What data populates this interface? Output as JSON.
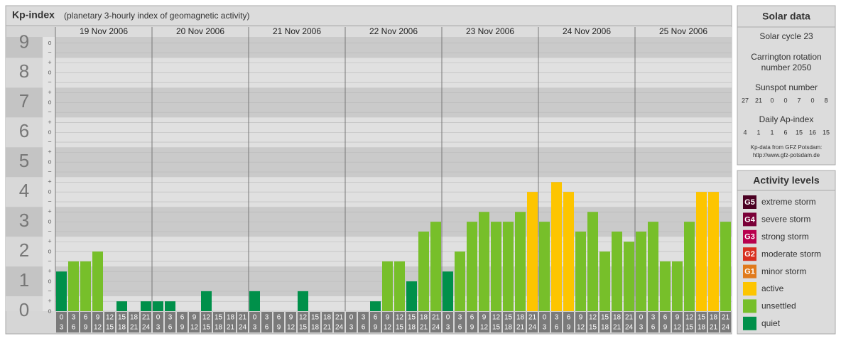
{
  "header": {
    "title": "Kp-index",
    "subtitle": "(planetary 3-hourly index of geomagnetic activity)"
  },
  "chart_data": {
    "type": "bar",
    "days": [
      "19 Nov 2006",
      "20 Nov 2006",
      "21 Nov 2006",
      "22 Nov 2006",
      "23 Nov 2006",
      "24 Nov 2006",
      "25 Nov 2006"
    ],
    "time_slots": [
      [
        "0",
        "3"
      ],
      [
        "3",
        "6"
      ],
      [
        "6",
        "9"
      ],
      [
        "9",
        "12"
      ],
      [
        "12",
        "15"
      ],
      [
        "15",
        "18"
      ],
      [
        "18",
        "21"
      ],
      [
        "21",
        "24"
      ]
    ],
    "values": [
      1.33,
      1.67,
      1.67,
      2,
      0,
      0.33,
      0,
      0.33,
      0.33,
      0.33,
      0,
      0,
      0.67,
      0,
      0,
      0,
      0.67,
      0,
      0,
      0,
      0.67,
      0,
      0,
      0,
      0,
      0,
      0.33,
      1.67,
      1.67,
      1,
      2.67,
      3,
      1.33,
      2,
      3,
      3.33,
      3,
      3,
      3.33,
      4,
      3,
      4.33,
      4,
      2.67,
      3.33,
      2,
      2.67,
      2.33,
      2.67,
      3,
      1.67,
      1.67,
      3,
      4,
      4,
      3
    ],
    "colors": [
      "#00904a",
      "#77bf2a",
      "#77bf2a",
      "#77bf2a",
      "#00904a",
      "#00904a",
      "#00904a",
      "#00904a",
      "#00904a",
      "#00904a",
      "#00904a",
      "#00904a",
      "#00904a",
      "#00904a",
      "#00904a",
      "#00904a",
      "#00904a",
      "#00904a",
      "#00904a",
      "#00904a",
      "#00904a",
      "#00904a",
      "#00904a",
      "#00904a",
      "#00904a",
      "#00904a",
      "#00904a",
      "#77bf2a",
      "#77bf2a",
      "#00904a",
      "#77bf2a",
      "#77bf2a",
      "#00904a",
      "#77bf2a",
      "#77bf2a",
      "#77bf2a",
      "#77bf2a",
      "#77bf2a",
      "#77bf2a",
      "#fdc500",
      "#77bf2a",
      "#fdc500",
      "#fdc500",
      "#77bf2a",
      "#77bf2a",
      "#77bf2a",
      "#77bf2a",
      "#77bf2a",
      "#77bf2a",
      "#77bf2a",
      "#77bf2a",
      "#77bf2a",
      "#77bf2a",
      "#fdc500",
      "#fdc500",
      "#77bf2a"
    ],
    "ylim": [
      0,
      9.2
    ],
    "yticks": [
      0,
      1,
      2,
      3,
      4,
      5,
      6,
      7,
      8,
      9
    ],
    "minor_ticks": [
      {
        "value": 0,
        "label": "o"
      },
      {
        "value": 0.33,
        "label": "+"
      },
      {
        "value": 0.67,
        "label": "−"
      },
      {
        "value": 1,
        "label": "o"
      },
      {
        "value": 1.33,
        "label": "+"
      },
      {
        "value": 1.67,
        "label": "−"
      },
      {
        "value": 2,
        "label": "o"
      },
      {
        "value": 2.33,
        "label": "+"
      },
      {
        "value": 2.67,
        "label": "−"
      },
      {
        "value": 3,
        "label": "o"
      },
      {
        "value": 3.33,
        "label": "+"
      },
      {
        "value": 3.67,
        "label": "−"
      },
      {
        "value": 4,
        "label": "o"
      },
      {
        "value": 4.33,
        "label": "+"
      },
      {
        "value": 4.67,
        "label": "−"
      },
      {
        "value": 5,
        "label": "o"
      },
      {
        "value": 5.33,
        "label": "+"
      },
      {
        "value": 5.67,
        "label": "−"
      },
      {
        "value": 6,
        "label": "o"
      },
      {
        "value": 6.33,
        "label": "+"
      },
      {
        "value": 6.67,
        "label": "−"
      },
      {
        "value": 7,
        "label": "o"
      },
      {
        "value": 7.33,
        "label": "+"
      },
      {
        "value": 7.67,
        "label": "−"
      },
      {
        "value": 8,
        "label": "o"
      },
      {
        "value": 8.33,
        "label": "+"
      },
      {
        "value": 8.67,
        "label": "−"
      },
      {
        "value": 9,
        "label": "o"
      }
    ],
    "grid": true
  },
  "solar": {
    "title": "Solar data",
    "cycle": "Solar cycle 23",
    "carrington": [
      "Carrington rotation",
      "number 2050"
    ],
    "sunspot_label": "Sunspot number",
    "sunspot": [
      27,
      21,
      0,
      0,
      7,
      0,
      8
    ],
    "ap_label": "Daily Ap-index",
    "ap": [
      4,
      1,
      1,
      6,
      15,
      16,
      15
    ],
    "source": [
      "Kp-data from GFZ Potsdam:",
      "http://www.gfz-potsdam.de"
    ]
  },
  "levels": {
    "title": "Activity levels",
    "items": [
      {
        "code": "G5",
        "name": "extreme storm",
        "color": "#4a0022"
      },
      {
        "code": "G4",
        "name": "severe storm",
        "color": "#7a0038"
      },
      {
        "code": "G3",
        "name": "strong storm",
        "color": "#b8004e"
      },
      {
        "code": "G2",
        "name": "moderate storm",
        "color": "#d83020"
      },
      {
        "code": "G1",
        "name": "minor storm",
        "color": "#e07a1c"
      },
      {
        "name": "active",
        "color": "#fdc500"
      },
      {
        "name": "unsettled",
        "color": "#77bf2a"
      },
      {
        "name": "quiet",
        "color": "#00904a"
      }
    ]
  }
}
